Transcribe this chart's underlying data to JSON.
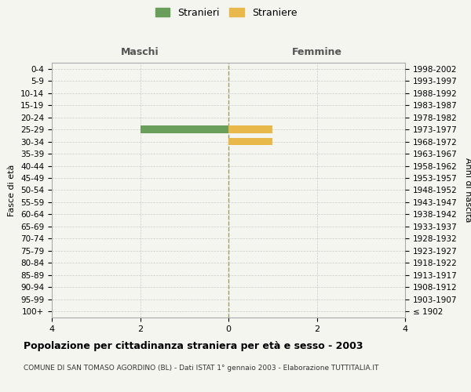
{
  "age_groups": [
    "100+",
    "95-99",
    "90-94",
    "85-89",
    "80-84",
    "75-79",
    "70-74",
    "65-69",
    "60-64",
    "55-59",
    "50-54",
    "45-49",
    "40-44",
    "35-39",
    "30-34",
    "25-29",
    "20-24",
    "15-19",
    "10-14",
    "5-9",
    "0-4"
  ],
  "birth_years": [
    "≤ 1902",
    "1903-1907",
    "1908-1912",
    "1913-1917",
    "1918-1922",
    "1923-1927",
    "1928-1932",
    "1933-1937",
    "1938-1942",
    "1943-1947",
    "1948-1952",
    "1953-1957",
    "1958-1962",
    "1963-1967",
    "1968-1972",
    "1973-1977",
    "1978-1982",
    "1983-1987",
    "1988-1992",
    "1993-1997",
    "1998-2002"
  ],
  "males": [
    0,
    0,
    0,
    0,
    0,
    0,
    0,
    0,
    0,
    0,
    0,
    0,
    0,
    0,
    0,
    2,
    0,
    0,
    0,
    0,
    0
  ],
  "females": [
    0,
    0,
    0,
    0,
    0,
    0,
    0,
    0,
    0,
    0,
    0,
    0,
    0,
    0,
    1,
    1,
    0,
    0,
    0,
    0,
    0
  ],
  "male_color": "#6a9e5b",
  "female_color": "#e8b84b",
  "xlim": 4,
  "xlabel_left": "Maschi",
  "xlabel_right": "Femmine",
  "ylabel_left": "Fasce di età",
  "ylabel_right": "Anni di nascita",
  "legend_stranieri": "Stranieri",
  "legend_straniere": "Straniere",
  "title": "Popolazione per cittadinanza straniera per età e sesso - 2003",
  "subtitle": "COMUNE DI SAN TOMASO AGORDINO (BL) - Dati ISTAT 1° gennaio 2003 - Elaborazione TUTTITALIA.IT",
  "bg_color": "#f5f5f0",
  "grid_color": "#cccccc",
  "center_line_color": "#a0a060",
  "xticks": [
    -4,
    -2,
    0,
    2,
    4
  ],
  "xtick_labels": [
    "4",
    "2",
    "0",
    "2",
    "4"
  ]
}
